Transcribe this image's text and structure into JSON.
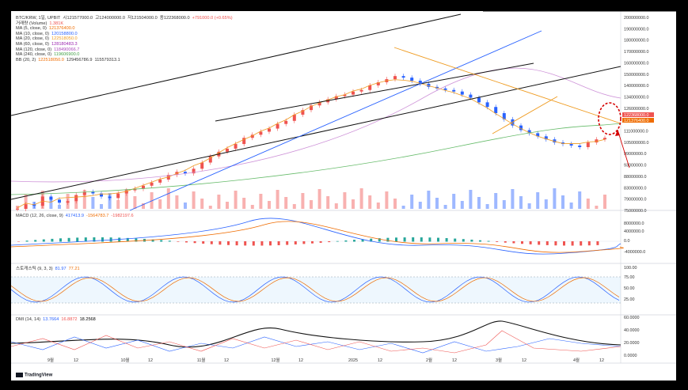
{
  "chart_data": {
    "type": "candlestick",
    "title": "BTC/KRW, 1일, UPBIT",
    "ohlc_text": {
      "o": "시121577000.0",
      "h": "고124000000.0",
      "l": "저121504000.0",
      "c": "종122368000.0",
      "chg": "+791000.0 (+0.65%)"
    },
    "volume_label": "거래량 (Volume)",
    "volume_value": "1.381K",
    "indicators": [
      {
        "name": "MA (5, close, 0)",
        "value": "121376400.0",
        "color": "#ef6c00"
      },
      {
        "name": "MA (10, close, 0)",
        "value": "120158800.0",
        "color": "#2962ff"
      },
      {
        "name": "MA (20, close, 0)",
        "value": "122518050.0",
        "color": "#ef9b20"
      },
      {
        "name": "MA (60, close, 0)",
        "value": "128180483.3",
        "color": "#9c27b0"
      },
      {
        "name": "MA (120, close, 0)",
        "value": "118490066.7",
        "color": "#ab47bc"
      },
      {
        "name": "MA (240, close, 0)",
        "value": "119606900.0",
        "color": "#43a047"
      },
      {
        "name": "BB (20, 2)",
        "value": "122518050.0",
        "value2": "129456786.9",
        "value3": "115579313.1",
        "color": "#ef6c00"
      }
    ],
    "price_axis": [
      "200000000.0",
      "190000000.0",
      "180000000.0",
      "170000000.0",
      "160000000.0",
      "150000000.0",
      "140000000.0",
      "134000000.0",
      "126000000.0",
      "118000000.0",
      "111000000.0",
      "105000000.0",
      "99000000.0",
      "93000000.0",
      "88000000.0",
      "83000000.0",
      "79000000.0",
      "75000000.0"
    ],
    "last_price_tag": "122368000.0",
    "ma_tag": "121376400.0",
    "x_ticks": [
      "9월",
      "12",
      "10월",
      "12",
      "11월",
      "12",
      "12월",
      "12",
      "2025",
      "12",
      "2월",
      "12",
      "3월",
      "12",
      "4월",
      "12"
    ],
    "macd": {
      "label": "MACD (12, 26, close, 9)",
      "v1": "417413.9",
      "v2": "-1564783.7",
      "v3": "-1982197.6",
      "axis": [
        "8000000.0",
        "4000000.0",
        "0.0",
        "-4000000.0"
      ]
    },
    "stoch": {
      "label": "스토캐스틱 (9, 3, 3)",
      "k": "81.97",
      "d": "77.21",
      "axis": [
        "100.00",
        "75.00",
        "50.00",
        "25.00"
      ]
    },
    "dmi": {
      "label": "DMI (14, 14)",
      "v1": "13.7664",
      "v2": "16.8872",
      "v3": "18.2568",
      "axis": [
        "60.0000",
        "40.0000",
        "20.0000",
        "0.0000"
      ]
    },
    "close_series": [
      76,
      79,
      78,
      84,
      82,
      80,
      81,
      85,
      87,
      86,
      84,
      83,
      86,
      88,
      89,
      91,
      93,
      95,
      98,
      100,
      99,
      102,
      106,
      110,
      113,
      115,
      118,
      122,
      124,
      126,
      128,
      131,
      133,
      137,
      140,
      143,
      145,
      147,
      149,
      150,
      152,
      153,
      156,
      158,
      160,
      162,
      161,
      159,
      157,
      155,
      154,
      153,
      152,
      150,
      148,
      145,
      142,
      138,
      134,
      130,
      127,
      125,
      123,
      121,
      119,
      118,
      117,
      116,
      119,
      121,
      122
    ]
  },
  "brand": "TradingView",
  "colors": {
    "up": "#ef5350",
    "down": "#2962ff",
    "bg": "#ffffff",
    "annotation": "#d50000"
  }
}
